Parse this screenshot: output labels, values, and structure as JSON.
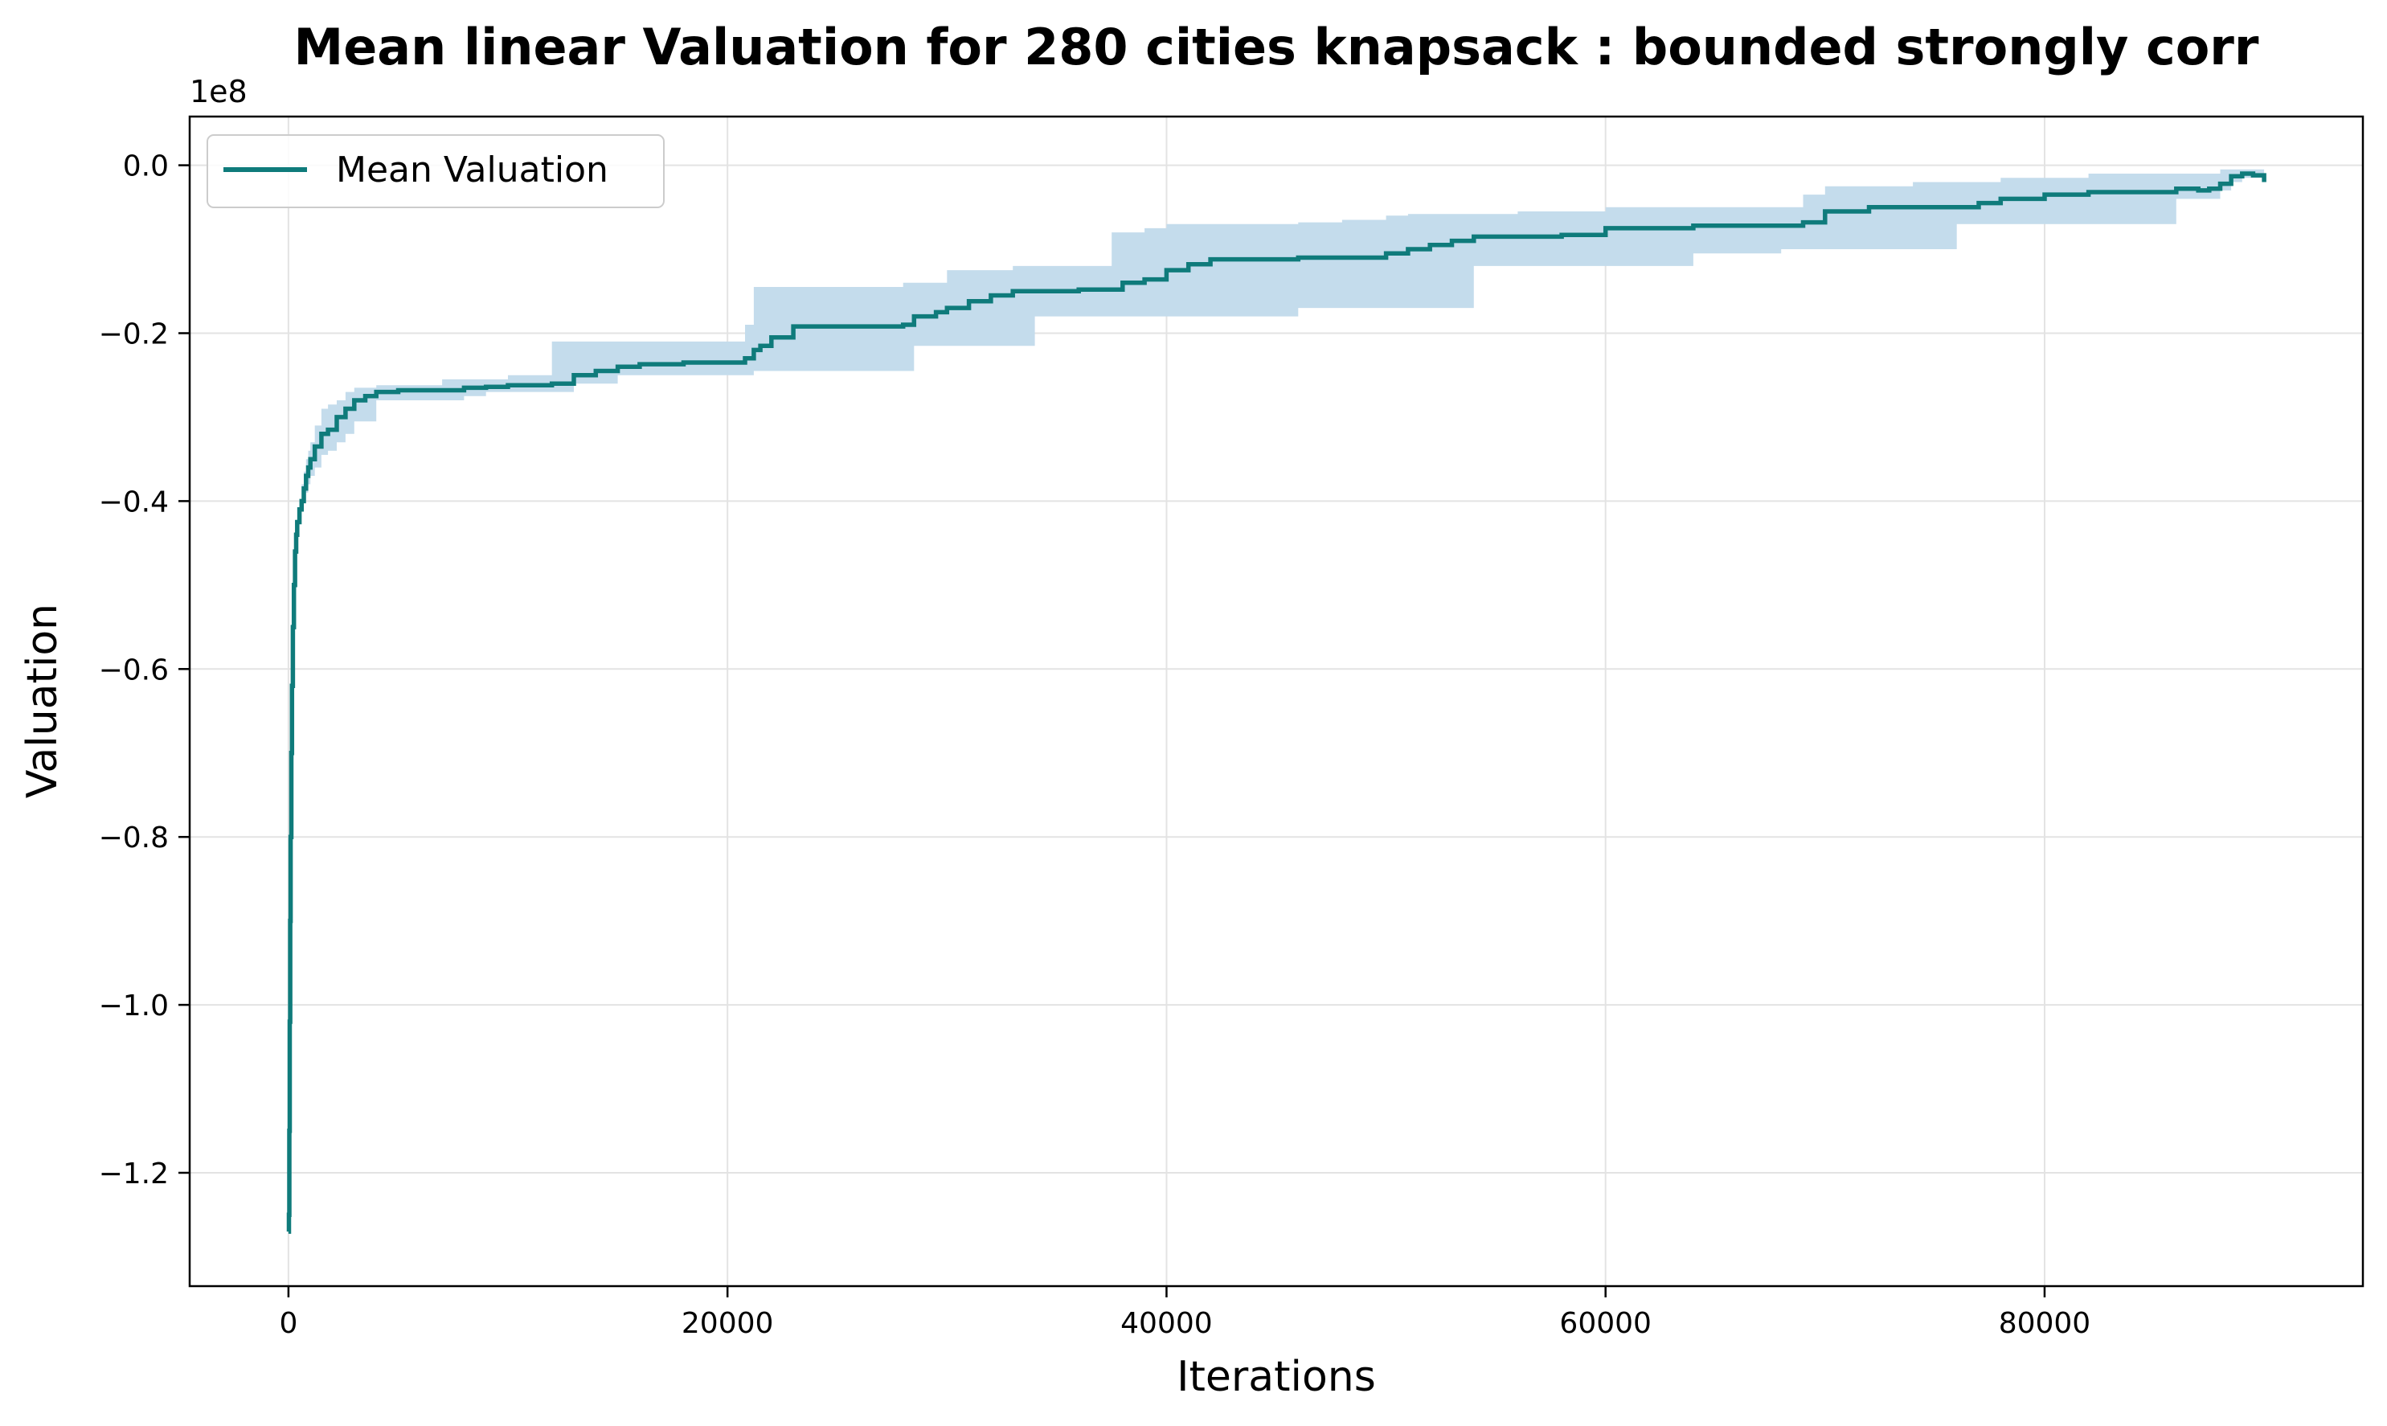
{
  "chart_data": {
    "type": "line",
    "title": "Mean linear Valuation for 280 cities knapsack : bounded strongly corr",
    "xlabel": "Iterations",
    "ylabel": "Valuation",
    "y_offset_label": "1e8",
    "xlim": [
      -4500,
      94500
    ],
    "ylim": [
      -1.335,
      0.058
    ],
    "grid": true,
    "legend_position": "top-left",
    "x_ticks": [
      0,
      20000,
      40000,
      60000,
      80000
    ],
    "x_tick_labels": [
      "0",
      "20000",
      "40000",
      "60000",
      "80000"
    ],
    "y_ticks": [
      0.0,
      -0.2,
      -0.4,
      -0.6,
      -0.8,
      -1.0,
      -1.2
    ],
    "y_tick_labels": [
      "0.0",
      "−0.2",
      "−0.4",
      "−0.6",
      "−0.8",
      "−1.0",
      "−1.2"
    ],
    "colors": {
      "line": "#0f7b7b",
      "band": "#c4dcec",
      "grid": "#e3e3e3"
    },
    "series": [
      {
        "name": "Mean Valuation",
        "x": [
          0,
          20,
          40,
          60,
          80,
          100,
          130,
          160,
          200,
          250,
          300,
          350,
          400,
          500,
          600,
          700,
          800,
          900,
          1000,
          1200,
          1500,
          1800,
          2200,
          2600,
          3000,
          3500,
          4000,
          5000,
          6000,
          7000,
          8000,
          9000,
          10000,
          11000,
          12000,
          13000,
          14000,
          15000,
          16000,
          18000,
          20000,
          20800,
          21200,
          21500,
          22000,
          23000,
          24000,
          26000,
          28000,
          28500,
          29500,
          30000,
          31000,
          32000,
          33000,
          34000,
          36000,
          37500,
          38000,
          39000,
          40000,
          41000,
          42000,
          44000,
          46000,
          48000,
          50000,
          51000,
          52000,
          53000,
          54000,
          56000,
          58000,
          60000,
          62000,
          64000,
          66000,
          68000,
          69000,
          70000,
          72000,
          74000,
          76000,
          77000,
          78000,
          80000,
          82000,
          84000,
          85000,
          86000,
          87000,
          87500,
          88000,
          88500,
          89000,
          89500,
          90000
        ],
        "mean": [
          -1.27,
          -1.25,
          -1.15,
          -1.02,
          -0.9,
          -0.8,
          -0.7,
          -0.62,
          -0.55,
          -0.5,
          -0.46,
          -0.44,
          -0.425,
          -0.41,
          -0.4,
          -0.385,
          -0.37,
          -0.36,
          -0.35,
          -0.335,
          -0.32,
          -0.315,
          -0.3,
          -0.29,
          -0.28,
          -0.275,
          -0.27,
          -0.268,
          -0.268,
          -0.268,
          -0.265,
          -0.264,
          -0.262,
          -0.262,
          -0.26,
          -0.25,
          -0.245,
          -0.24,
          -0.237,
          -0.235,
          -0.235,
          -0.23,
          -0.22,
          -0.215,
          -0.205,
          -0.192,
          -0.192,
          -0.192,
          -0.19,
          -0.18,
          -0.175,
          -0.17,
          -0.162,
          -0.155,
          -0.15,
          -0.15,
          -0.148,
          -0.148,
          -0.14,
          -0.136,
          -0.125,
          -0.118,
          -0.112,
          -0.112,
          -0.11,
          -0.11,
          -0.105,
          -0.1,
          -0.095,
          -0.09,
          -0.085,
          -0.085,
          -0.083,
          -0.075,
          -0.075,
          -0.072,
          -0.072,
          -0.072,
          -0.068,
          -0.055,
          -0.05,
          -0.05,
          -0.05,
          -0.045,
          -0.04,
          -0.035,
          -0.032,
          -0.032,
          -0.032,
          -0.028,
          -0.03,
          -0.028,
          -0.022,
          -0.013,
          -0.01,
          -0.012,
          -0.02
        ],
        "upper": [
          -1.27,
          -1.25,
          -1.15,
          -1.02,
          -0.9,
          -0.8,
          -0.7,
          -0.62,
          -0.55,
          -0.5,
          -0.46,
          -0.44,
          -0.425,
          -0.4,
          -0.38,
          -0.365,
          -0.35,
          -0.34,
          -0.33,
          -0.31,
          -0.29,
          -0.285,
          -0.28,
          -0.27,
          -0.265,
          -0.265,
          -0.262,
          -0.262,
          -0.262,
          -0.255,
          -0.255,
          -0.255,
          -0.25,
          -0.25,
          -0.21,
          -0.21,
          -0.21,
          -0.21,
          -0.21,
          -0.21,
          -0.21,
          -0.19,
          -0.145,
          -0.145,
          -0.145,
          -0.145,
          -0.145,
          -0.145,
          -0.14,
          -0.14,
          -0.14,
          -0.125,
          -0.125,
          -0.125,
          -0.12,
          -0.12,
          -0.12,
          -0.08,
          -0.08,
          -0.075,
          -0.07,
          -0.07,
          -0.07,
          -0.07,
          -0.068,
          -0.065,
          -0.06,
          -0.058,
          -0.058,
          -0.058,
          -0.058,
          -0.055,
          -0.055,
          -0.05,
          -0.05,
          -0.05,
          -0.05,
          -0.05,
          -0.035,
          -0.025,
          -0.025,
          -0.02,
          -0.02,
          -0.02,
          -0.015,
          -0.015,
          -0.01,
          -0.01,
          -0.01,
          -0.01,
          -0.01,
          -0.01,
          -0.005,
          -0.005,
          -0.005,
          -0.005,
          -0.005
        ],
        "lower": [
          -1.27,
          -1.25,
          -1.15,
          -1.02,
          -0.9,
          -0.8,
          -0.7,
          -0.62,
          -0.55,
          -0.5,
          -0.46,
          -0.44,
          -0.425,
          -0.42,
          -0.41,
          -0.4,
          -0.39,
          -0.38,
          -0.37,
          -0.36,
          -0.345,
          -0.34,
          -0.33,
          -0.32,
          -0.305,
          -0.305,
          -0.28,
          -0.28,
          -0.28,
          -0.28,
          -0.275,
          -0.27,
          -0.27,
          -0.27,
          -0.27,
          -0.26,
          -0.26,
          -0.25,
          -0.25,
          -0.25,
          -0.25,
          -0.25,
          -0.245,
          -0.245,
          -0.245,
          -0.245,
          -0.245,
          -0.245,
          -0.245,
          -0.215,
          -0.215,
          -0.215,
          -0.215,
          -0.215,
          -0.215,
          -0.18,
          -0.18,
          -0.18,
          -0.18,
          -0.18,
          -0.18,
          -0.18,
          -0.18,
          -0.18,
          -0.17,
          -0.17,
          -0.17,
          -0.17,
          -0.17,
          -0.17,
          -0.12,
          -0.12,
          -0.12,
          -0.12,
          -0.12,
          -0.105,
          -0.105,
          -0.1,
          -0.1,
          -0.1,
          -0.1,
          -0.1,
          -0.07,
          -0.07,
          -0.07,
          -0.07,
          -0.07,
          -0.07,
          -0.07,
          -0.04,
          -0.04,
          -0.04,
          -0.03,
          -0.02,
          -0.015,
          -0.015,
          -0.02
        ]
      }
    ]
  }
}
